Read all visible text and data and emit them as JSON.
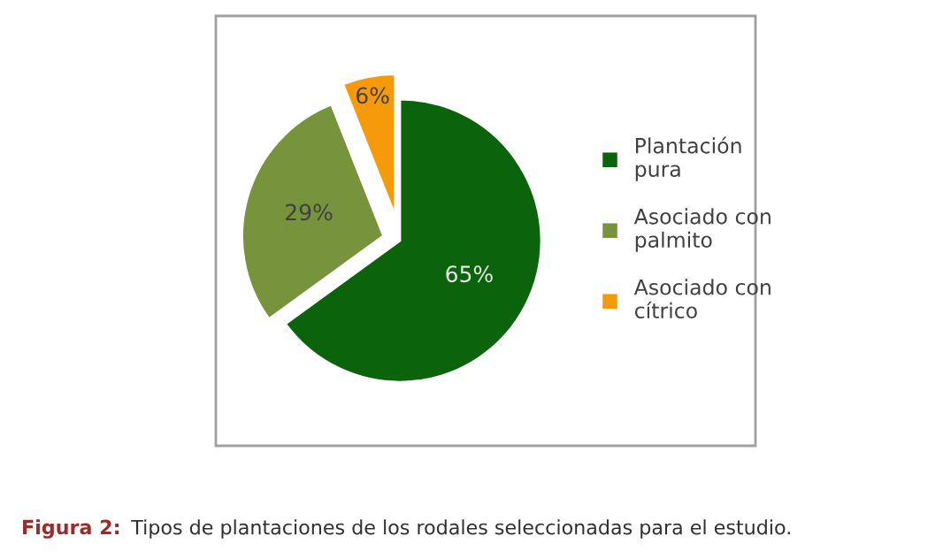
{
  "chart_data": {
    "type": "pie",
    "categories": [
      "Plantación\npura",
      "Asociado con\npalmito",
      "Asociado con\ncítrico"
    ],
    "values": [
      65,
      29,
      6
    ],
    "value_labels": [
      "65%",
      "29%",
      "6%"
    ],
    "colors": [
      "#0b640b",
      "#77933c",
      "#f79a0a"
    ],
    "legend": "right",
    "annotations": [
      "Figura 2:",
      "Tipos de plantaciones de los rodales seleccionadas para el estudio."
    ]
  }
}
